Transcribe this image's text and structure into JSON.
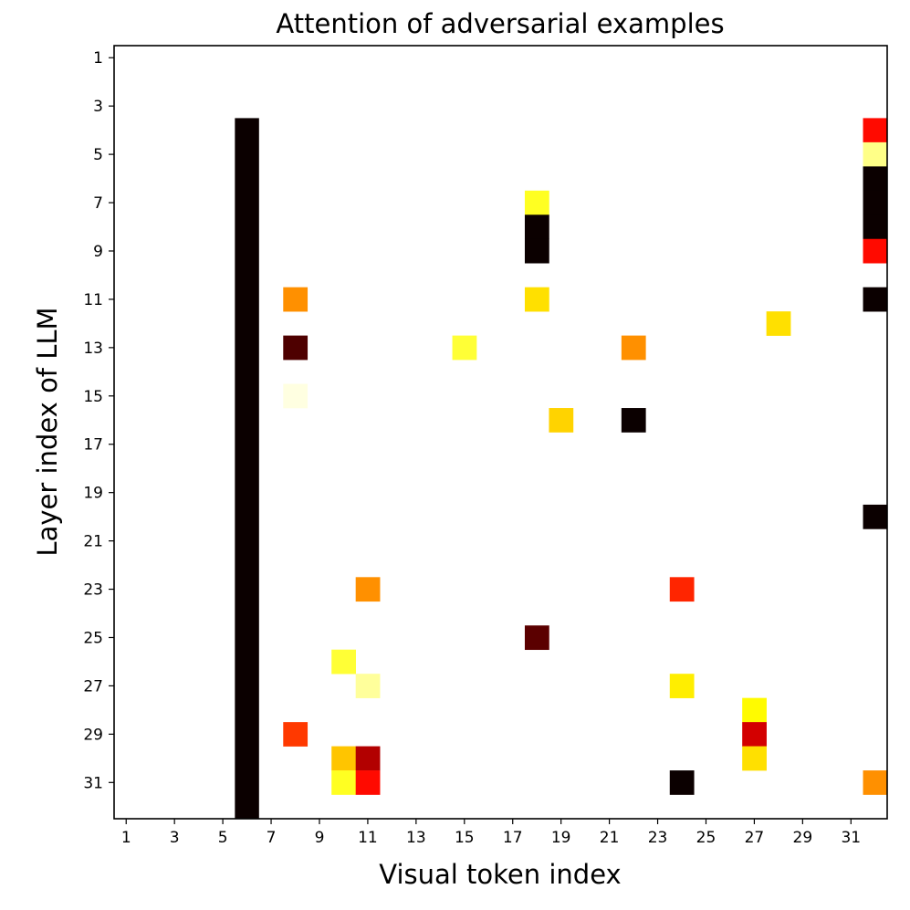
{
  "chart_data": {
    "type": "heatmap",
    "title": "Attention of adversarial examples",
    "xlabel": "Visual token index",
    "ylabel": "Layer index of LLM",
    "colormap": "hot_r",
    "x_ticks": [
      "1",
      "3",
      "5",
      "7",
      "9",
      "11",
      "13",
      "15",
      "17",
      "19",
      "21",
      "23",
      "25",
      "27",
      "29",
      "31"
    ],
    "y_ticks": [
      "1",
      "3",
      "5",
      "7",
      "9",
      "11",
      "13",
      "15",
      "17",
      "19",
      "21",
      "23",
      "25",
      "27",
      "29",
      "31"
    ],
    "x_range": [
      1,
      32
    ],
    "y_range": [
      1,
      32
    ],
    "value_range": [
      0,
      1
    ],
    "column_highlight": {
      "token": 6,
      "layer_start": 4,
      "layer_end": 32,
      "value": 1.0
    },
    "cells": [
      {
        "token": 32,
        "layer": 4,
        "value": 0.62
      },
      {
        "token": 32,
        "layer": 5,
        "value": 0.12
      },
      {
        "token": 32,
        "layer": 6,
        "value": 1.0
      },
      {
        "token": 32,
        "layer": 7,
        "value": 1.0
      },
      {
        "token": 32,
        "layer": 8,
        "value": 1.0
      },
      {
        "token": 32,
        "layer": 9,
        "value": 0.62
      },
      {
        "token": 32,
        "layer": 11,
        "value": 1.0
      },
      {
        "token": 32,
        "layer": 20,
        "value": 1.0
      },
      {
        "token": 32,
        "layer": 31,
        "value": 0.42
      },
      {
        "token": 18,
        "layer": 7,
        "value": 0.22
      },
      {
        "token": 18,
        "layer": 8,
        "value": 1.0
      },
      {
        "token": 18,
        "layer": 9,
        "value": 1.0
      },
      {
        "token": 18,
        "layer": 11,
        "value": 0.3
      },
      {
        "token": 18,
        "layer": 25,
        "value": 0.88
      },
      {
        "token": 8,
        "layer": 11,
        "value": 0.42
      },
      {
        "token": 8,
        "layer": 13,
        "value": 0.9
      },
      {
        "token": 8,
        "layer": 15,
        "value": 0.03
      },
      {
        "token": 8,
        "layer": 29,
        "value": 0.55
      },
      {
        "token": 28,
        "layer": 12,
        "value": 0.3
      },
      {
        "token": 15,
        "layer": 13,
        "value": 0.2
      },
      {
        "token": 22,
        "layer": 13,
        "value": 0.42
      },
      {
        "token": 19,
        "layer": 16,
        "value": 0.32
      },
      {
        "token": 22,
        "layer": 16,
        "value": 1.0
      },
      {
        "token": 11,
        "layer": 23,
        "value": 0.42
      },
      {
        "token": 24,
        "layer": 23,
        "value": 0.58
      },
      {
        "token": 10,
        "layer": 26,
        "value": 0.2
      },
      {
        "token": 11,
        "layer": 27,
        "value": 0.1
      },
      {
        "token": 24,
        "layer": 27,
        "value": 0.28
      },
      {
        "token": 27,
        "layer": 28,
        "value": 0.26
      },
      {
        "token": 27,
        "layer": 29,
        "value": 0.7
      },
      {
        "token": 27,
        "layer": 30,
        "value": 0.3
      },
      {
        "token": 10,
        "layer": 30,
        "value": 0.34
      },
      {
        "token": 11,
        "layer": 30,
        "value": 0.75
      },
      {
        "token": 10,
        "layer": 31,
        "value": 0.22
      },
      {
        "token": 11,
        "layer": 31,
        "value": 0.62
      },
      {
        "token": 24,
        "layer": 31,
        "value": 1.0
      }
    ]
  }
}
